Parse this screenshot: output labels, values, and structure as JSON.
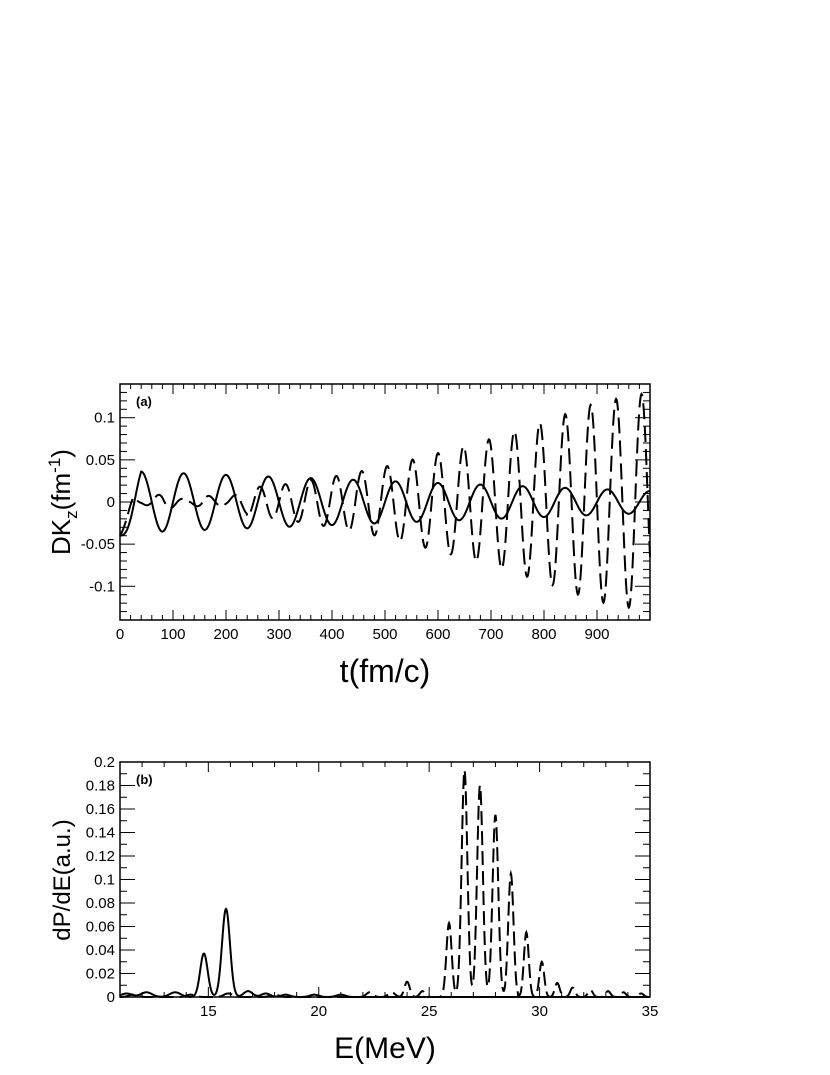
{
  "chart_data": [
    {
      "type": "line",
      "panel_label": "(a)",
      "xlabel": "t(fm/c)",
      "ylabel_main": "DK",
      "ylabel_sub": "z",
      "ylabel_unit_open": "(fm",
      "ylabel_sup": "-1",
      "ylabel_unit_close": ")",
      "xlim": [
        0,
        1000
      ],
      "ylim": [
        -0.14,
        0.14
      ],
      "xticks": [
        0,
        100,
        200,
        300,
        400,
        500,
        600,
        700,
        800,
        900
      ],
      "xtick_labels": [
        "0",
        "100",
        "200",
        "300",
        "400",
        "500",
        "600",
        "700",
        "800",
        "900"
      ],
      "yticks": [
        -0.1,
        -0.05,
        0,
        0.05,
        0.1
      ],
      "ytick_labels": [
        "-0.1",
        "-0.05",
        "0",
        "0.05",
        "0.1"
      ],
      "series": [
        {
          "style": "solid",
          "model": "decaying-oscillation",
          "period_fm_c": 80,
          "amplitude_start": 0.037,
          "amplitude_end": 0.013,
          "start_value": -0.04,
          "ramp_fm_c": 40,
          "x": [
            0,
            40,
            80,
            120,
            160,
            200,
            240,
            280,
            320,
            360,
            400,
            440,
            480,
            520,
            560,
            600,
            640,
            680,
            720,
            760,
            800,
            840,
            880,
            920,
            960,
            1000
          ],
          "y": [
            -0.04,
            0.036,
            -0.034,
            0.034,
            -0.031,
            0.03,
            -0.027,
            0.026,
            -0.024,
            0.024,
            -0.022,
            0.022,
            -0.02,
            0.02,
            -0.019,
            0.019,
            -0.018,
            0.018,
            -0.017,
            0.017,
            -0.016,
            0.016,
            -0.015,
            0.014,
            -0.013,
            0.013
          ]
        },
        {
          "style": "dashed",
          "model": "beating-growing-oscillation",
          "period_fm_c": 48,
          "envelope_x": [
            0,
            100,
            200,
            300,
            400,
            500,
            600,
            700,
            800,
            900,
            1000
          ],
          "envelope_y": [
            0.012,
            0.01,
            0.015,
            0.02,
            0.03,
            0.042,
            0.058,
            0.075,
            0.095,
            0.118,
            0.13
          ],
          "beat_x": [
            0,
            40,
            80,
            130,
            160,
            200,
            240
          ],
          "beat_y": [
            0.012,
            0.002,
            0.01,
            0.002,
            0.008,
            0.004,
            0.014
          ],
          "start_value": -0.04,
          "ramp_fm_c": 25
        }
      ]
    },
    {
      "type": "line",
      "panel_label": "(b)",
      "xlabel": "E(MeV)",
      "ylabel": "dP/dE(a.u.)",
      "xlim": [
        11,
        35
      ],
      "ylim": [
        0,
        0.2
      ],
      "xticks": [
        15,
        20,
        25,
        30,
        35
      ],
      "xtick_labels": [
        "15",
        "20",
        "25",
        "30",
        "35"
      ],
      "yticks": [
        0,
        0.02,
        0.04,
        0.06,
        0.08,
        0.1,
        0.12,
        0.14,
        0.16,
        0.18,
        0.2
      ],
      "ytick_labels": [
        "0",
        "0.02",
        "0.04",
        "0.06",
        "0.08",
        "0.1",
        "0.12",
        "0.14",
        "0.16",
        "0.18",
        "0.2"
      ],
      "series": [
        {
          "style": "solid",
          "peaks": [
            {
              "E": 11.3,
              "h": 0.003,
              "w": 0.25
            },
            {
              "E": 12.2,
              "h": 0.004,
              "w": 0.25
            },
            {
              "E": 13.5,
              "h": 0.004,
              "w": 0.25
            },
            {
              "E": 14.8,
              "h": 0.037,
              "w": 0.17
            },
            {
              "E": 15.8,
              "h": 0.075,
              "w": 0.18
            },
            {
              "E": 16.8,
              "h": 0.005,
              "w": 0.2
            },
            {
              "E": 17.6,
              "h": 0.003,
              "w": 0.2
            },
            {
              "E": 18.5,
              "h": 0.002,
              "w": 0.2
            },
            {
              "E": 19.8,
              "h": 0.002,
              "w": 0.2
            },
            {
              "E": 21.0,
              "h": 0.002,
              "w": 0.2
            }
          ]
        },
        {
          "style": "dashed",
          "peaks": [
            {
              "E": 11.6,
              "h": 0.002,
              "w": 0.2
            },
            {
              "E": 14.2,
              "h": 0.002,
              "w": 0.2
            },
            {
              "E": 15.9,
              "h": 0.003,
              "w": 0.2
            },
            {
              "E": 18.0,
              "h": 0.002,
              "w": 0.2
            },
            {
              "E": 22.3,
              "h": 0.004,
              "w": 0.15
            },
            {
              "E": 23.3,
              "h": 0.004,
              "w": 0.15
            },
            {
              "E": 24.0,
              "h": 0.013,
              "w": 0.12
            },
            {
              "E": 24.7,
              "h": 0.005,
              "w": 0.12
            },
            {
              "E": 25.9,
              "h": 0.063,
              "w": 0.12
            },
            {
              "E": 26.6,
              "h": 0.193,
              "w": 0.13
            },
            {
              "E": 27.3,
              "h": 0.18,
              "w": 0.13
            },
            {
              "E": 28.0,
              "h": 0.155,
              "w": 0.13
            },
            {
              "E": 28.7,
              "h": 0.105,
              "w": 0.12
            },
            {
              "E": 29.4,
              "h": 0.055,
              "w": 0.11
            },
            {
              "E": 30.1,
              "h": 0.03,
              "w": 0.11
            },
            {
              "E": 30.8,
              "h": 0.012,
              "w": 0.11
            },
            {
              "E": 31.5,
              "h": 0.008,
              "w": 0.11
            },
            {
              "E": 32.3,
              "h": 0.006,
              "w": 0.11
            },
            {
              "E": 33.1,
              "h": 0.005,
              "w": 0.11
            },
            {
              "E": 33.8,
              "h": 0.004,
              "w": 0.11
            },
            {
              "E": 34.6,
              "h": 0.003,
              "w": 0.11
            }
          ]
        }
      ]
    }
  ]
}
